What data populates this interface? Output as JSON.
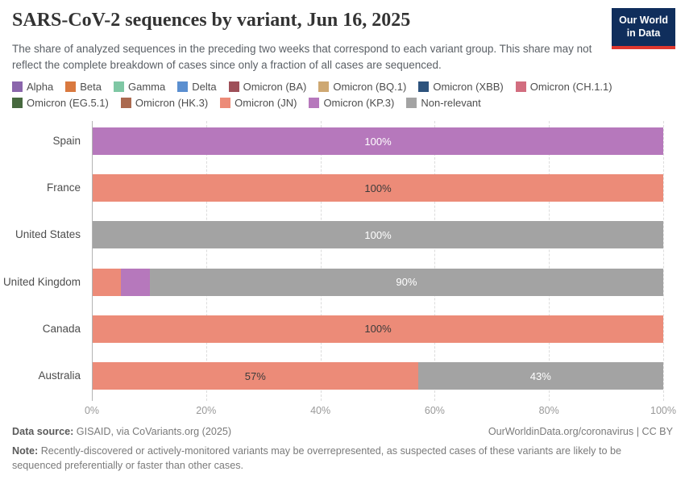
{
  "header": {
    "title": "SARS-CoV-2 sequences by variant, Jun 16, 2025",
    "subtitle": "The share of analyzed sequences in the preceding two weeks that correspond to each variant group. This share may not reflect the complete breakdown of cases since only a fraction of all cases are sequenced.",
    "logo": {
      "line1": "Our World",
      "line2": "in Data"
    }
  },
  "colors": {
    "Alpha": "#8B66AC",
    "Beta": "#D9793F",
    "Gamma": "#7FC7A4",
    "Delta": "#5B8FD0",
    "Omicron (BA)": "#9E4F58",
    "Omicron (BQ.1)": "#CEA872",
    "Omicron (XBB)": "#2D537D",
    "Omicron (CH.1.1)": "#D26D7F",
    "Omicron (EG.5.1)": "#47693F",
    "Omicron (HK.3)": "#AB6A4F",
    "Omicron (JN)": "#EC8B78",
    "Omicron (KP.3)": "#B678BC",
    "Non-relevant": "#A3A3A3"
  },
  "legend": {
    "items": [
      "Alpha",
      "Beta",
      "Gamma",
      "Delta",
      "Omicron (BA)",
      "Omicron (BQ.1)",
      "Omicron (XBB)",
      "Omicron (CH.1.1)",
      "Omicron (EG.5.1)",
      "Omicron (HK.3)",
      "Omicron (JN)",
      "Omicron (KP.3)",
      "Non-relevant"
    ]
  },
  "chart": {
    "x_ticks": [
      "0%",
      "20%",
      "40%",
      "60%",
      "80%",
      "100%"
    ],
    "rows": [
      {
        "country": "Spain",
        "segments": [
          {
            "variant": "Omicron (KP.3)",
            "value": 100,
            "label": "100%",
            "label_color": "#ffffff"
          }
        ]
      },
      {
        "country": "France",
        "segments": [
          {
            "variant": "Omicron (JN)",
            "value": 100,
            "label": "100%",
            "label_color": "#3b3b3b"
          }
        ]
      },
      {
        "country": "United States",
        "segments": [
          {
            "variant": "Non-relevant",
            "value": 100,
            "label": "100%",
            "label_color": "#ffffff"
          }
        ]
      },
      {
        "country": "United Kingdom",
        "segments": [
          {
            "variant": "Omicron (JN)",
            "value": 5,
            "label": ""
          },
          {
            "variant": "Omicron (KP.3)",
            "value": 5,
            "label": ""
          },
          {
            "variant": "Non-relevant",
            "value": 90,
            "label": "90%",
            "label_color": "#ffffff"
          }
        ]
      },
      {
        "country": "Canada",
        "segments": [
          {
            "variant": "Omicron (JN)",
            "value": 100,
            "label": "100%",
            "label_color": "#3b3b3b"
          }
        ]
      },
      {
        "country": "Australia",
        "segments": [
          {
            "variant": "Omicron (JN)",
            "value": 57,
            "label": "57%",
            "label_color": "#3b3b3b"
          },
          {
            "variant": "Non-relevant",
            "value": 43,
            "label": "43%",
            "label_color": "#ffffff"
          }
        ]
      }
    ]
  },
  "chart_data": {
    "type": "bar",
    "orientation": "horizontal",
    "stacked": true,
    "title": "SARS-CoV-2 sequences by variant, Jun 16, 2025",
    "categories": [
      "Spain",
      "France",
      "United States",
      "United Kingdom",
      "Canada",
      "Australia"
    ],
    "series": [
      {
        "name": "Omicron (JN)",
        "values": [
          0,
          100,
          0,
          5,
          100,
          57
        ]
      },
      {
        "name": "Omicron (KP.3)",
        "values": [
          100,
          0,
          0,
          5,
          0,
          0
        ]
      },
      {
        "name": "Non-relevant",
        "values": [
          0,
          0,
          100,
          90,
          0,
          43
        ]
      }
    ],
    "data_labels": [
      [
        "100%"
      ],
      [
        "100%"
      ],
      [
        "100%"
      ],
      [
        "",
        "",
        "90%"
      ],
      [
        "100%"
      ],
      [
        "57%",
        "43%"
      ]
    ],
    "legend_entries": [
      "Alpha",
      "Beta",
      "Gamma",
      "Delta",
      "Omicron (BA)",
      "Omicron (BQ.1)",
      "Omicron (XBB)",
      "Omicron (CH.1.1)",
      "Omicron (EG.5.1)",
      "Omicron (HK.3)",
      "Omicron (JN)",
      "Omicron (KP.3)",
      "Non-relevant"
    ],
    "legend_position": "top",
    "xlabel": "",
    "ylabel": "",
    "xlim": [
      0,
      100
    ],
    "x_tick_labels": [
      "0%",
      "20%",
      "40%",
      "60%",
      "80%",
      "100%"
    ],
    "grid": true
  },
  "footer": {
    "source_label": "Data source:",
    "source_value": "GISAID, via CoVariants.org (2025)",
    "attribution": "OurWorldinData.org/coronavirus | CC BY",
    "note_label": "Note:",
    "note_text": "Recently-discovered or actively-monitored variants may be overrepresented, as suspected cases of these variants are likely to be sequenced preferentially or faster than other cases."
  }
}
